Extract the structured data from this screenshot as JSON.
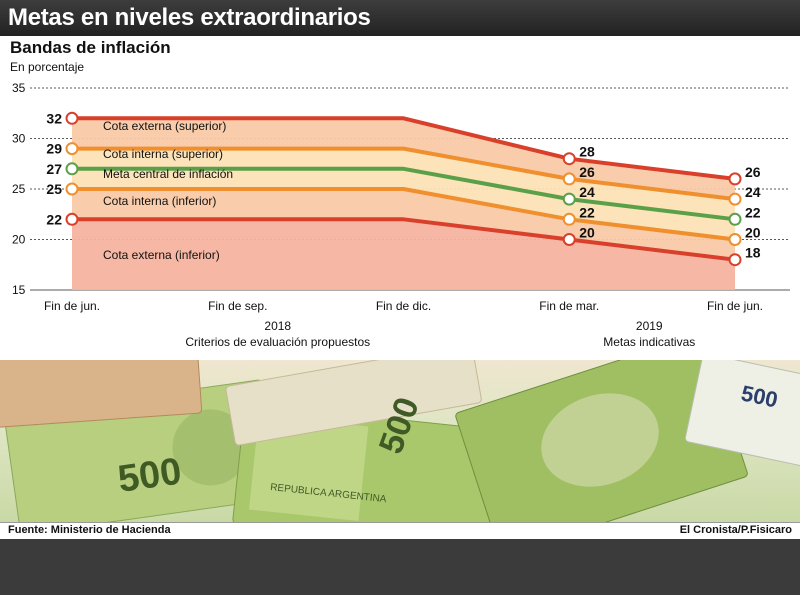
{
  "header": {
    "title": "Metas en niveles extraordinarios"
  },
  "chart_data": {
    "type": "area",
    "title": "Bandas de inflación",
    "subtitle": "En porcentaje",
    "ylim": [
      15,
      35
    ],
    "yticks": [
      15,
      20,
      25,
      30,
      35
    ],
    "categories": [
      "Fin de jun.",
      "Fin de sep.",
      "Fin de dic.",
      "Fin de mar.",
      "Fin de jun."
    ],
    "groups": [
      {
        "year": "2018",
        "label": "Criterios de evaluación propuestos"
      },
      {
        "year": "2019",
        "label": "Metas indicativas"
      }
    ],
    "grid": true,
    "series": [
      {
        "name": "Cota externa (superior)",
        "color": "#d9402b",
        "values": [
          32,
          32,
          32,
          28,
          26
        ]
      },
      {
        "name": "Cota interna (superior)",
        "color": "#ef8f2e",
        "values": [
          29,
          29,
          29,
          26,
          24
        ]
      },
      {
        "name": "Meta central de inflación",
        "color": "#5aa049",
        "values": [
          27,
          27,
          27,
          24,
          22
        ]
      },
      {
        "name": "Cota interna (inferior)",
        "color": "#ef8f2e",
        "values": [
          25,
          25,
          25,
          22,
          20
        ]
      },
      {
        "name": "Cota externa (inferior)",
        "color": "#d9402b",
        "values": [
          22,
          22,
          22,
          20,
          18
        ]
      }
    ],
    "labeled_points": [
      0,
      3,
      4
    ]
  },
  "footer": {
    "source": "Fuente: Ministerio de Hacienda",
    "credit": "El Cronista/P.Fisicaro"
  },
  "decor": {
    "banknote_value": "500",
    "banknote_text": "REPUBLICA ARGENTINA"
  }
}
